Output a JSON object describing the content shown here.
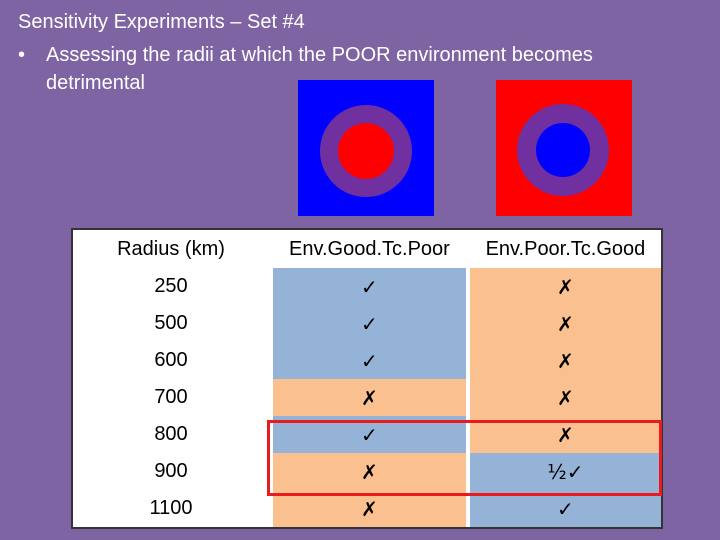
{
  "slide": {
    "title": "Sensitivity Experiments – Set #4",
    "bullet_mark": "•",
    "bullet_text": "Assessing the radii at which the POOR environment becomes detrimental"
  },
  "figures": {
    "left": {
      "background": "#0000ff",
      "ring": "#7030a0",
      "center": "#ff0000"
    },
    "right": {
      "background": "#ff0000",
      "ring": "#7030a0",
      "center": "#0000ff"
    }
  },
  "table": {
    "headers": [
      "Radius (km)",
      "Env.Good.Tc.Poor",
      "Env.Poor.Tc.Good"
    ],
    "rows": [
      {
        "radius": "250",
        "good_tc_poor": "✓",
        "poor_tc_good": "✗"
      },
      {
        "radius": "500",
        "good_tc_poor": "✓",
        "poor_tc_good": "✗"
      },
      {
        "radius": "600",
        "good_tc_poor": "✓",
        "poor_tc_good": "✗"
      },
      {
        "radius": "700",
        "good_tc_poor": "✗",
        "poor_tc_good": "✗"
      },
      {
        "radius": "800",
        "good_tc_poor": "✓",
        "poor_tc_good": "✗"
      },
      {
        "radius": "900",
        "good_tc_poor": "✗",
        "poor_tc_good": "½✓"
      },
      {
        "radius": "1100",
        "good_tc_poor": "✗",
        "poor_tc_good": "✓"
      }
    ]
  },
  "colors": {
    "background": "#7f64a3",
    "cell_success": "#95b3d7",
    "cell_failure": "#fac090",
    "highlight_border": "#e81c1c"
  }
}
